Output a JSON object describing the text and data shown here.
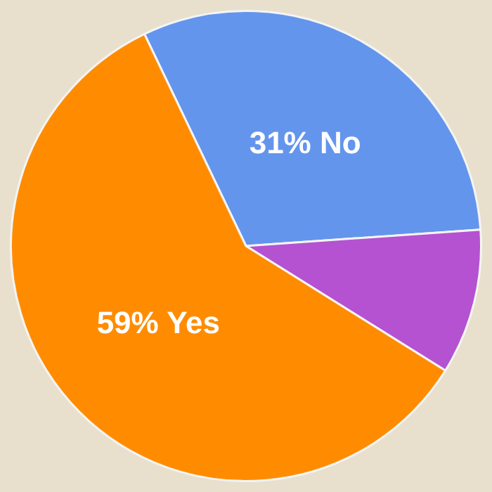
{
  "chart_data": {
    "type": "pie",
    "categories": [
      "31% No",
      null,
      "59% Yes"
    ],
    "values": [
      31,
      10,
      59
    ],
    "colors": [
      "#6495ed",
      "#b452d2",
      "#ff8c00"
    ],
    "legend": false
  }
}
